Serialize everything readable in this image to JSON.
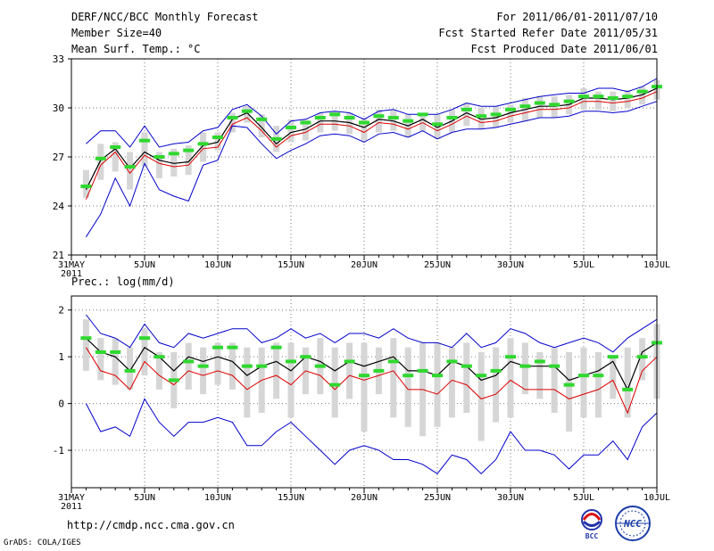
{
  "header": {
    "title": "DERF/NCC/BCC Monthly Forecast",
    "member_size": "Member Size=40",
    "variable": "Mean Surf. Temp.: °C",
    "for_range": "For 2011/06/01-2011/07/10",
    "refer_date": "Fcst Started Refer Date 2011/05/31",
    "produced_date": "Fcst Produced Date 2011/06/01"
  },
  "footer": {
    "url": "http://cmdp.ncc.cma.gov.cn",
    "grads": "GrADS: COLA/IGES",
    "logo_bcc": "BCC",
    "logo_ncc": "NCC"
  },
  "colors": {
    "spread": "#0000cc",
    "ensemble_mean": "#000000",
    "control": "#dd0000",
    "members": "#2fd82f",
    "range_bar": "#d6d6d6",
    "grid": "#777777"
  },
  "chart_data": [
    {
      "type": "line",
      "title": "Mean Surf. Temp.: °C",
      "xlabel": "",
      "ylabel": "°C",
      "x": [
        0,
        1,
        2,
        3,
        4,
        5,
        6,
        7,
        8,
        9,
        10,
        11,
        12,
        13,
        14,
        15,
        16,
        17,
        18,
        19,
        20,
        21,
        22,
        23,
        24,
        25,
        26,
        27,
        28,
        29,
        30,
        31,
        32,
        33,
        34,
        35,
        36,
        37,
        38,
        39,
        40
      ],
      "x_ticks": [
        0,
        5,
        10,
        15,
        20,
        25,
        30,
        35,
        40
      ],
      "x_tick_labels": [
        "31MAY",
        "5JUN",
        "10JUN",
        "15JUN",
        "20JUN",
        "25JUN",
        "30JUN",
        "5JUL",
        "10JUL"
      ],
      "x_year_label": "2011",
      "ylim": [
        21,
        33
      ],
      "y_ticks": [
        21,
        24,
        27,
        30,
        33
      ],
      "grid": true,
      "series": [
        {
          "name": "max",
          "values": [
            null,
            27.8,
            28.6,
            28.6,
            27.6,
            28.9,
            27.6,
            27.8,
            27.9,
            28.6,
            28.8,
            29.9,
            30.2,
            29.5,
            28.4,
            29.2,
            29.3,
            29.7,
            29.8,
            29.7,
            29.3,
            29.8,
            29.9,
            29.6,
            29.6,
            29.6,
            29.9,
            30.3,
            30.1,
            30.1,
            30.3,
            30.5,
            30.7,
            30.8,
            30.9,
            30.9,
            31.2,
            31.2,
            31.0,
            31.3,
            31.8
          ]
        },
        {
          "name": "ensemble_mean",
          "values": [
            null,
            25.0,
            26.8,
            27.5,
            26.3,
            27.3,
            26.8,
            26.6,
            26.7,
            27.7,
            27.9,
            29.3,
            29.7,
            28.8,
            27.8,
            28.5,
            28.7,
            29.2,
            29.2,
            29.1,
            28.8,
            29.3,
            29.2,
            28.9,
            29.3,
            28.8,
            29.2,
            29.7,
            29.3,
            29.4,
            29.7,
            29.9,
            30.1,
            30.1,
            30.2,
            30.6,
            30.6,
            30.5,
            30.6,
            30.8,
            31.2
          ]
        },
        {
          "name": "control",
          "values": [
            null,
            24.4,
            26.5,
            27.3,
            26.0,
            27.1,
            26.6,
            26.4,
            26.5,
            27.5,
            27.6,
            29.0,
            29.4,
            28.6,
            27.6,
            28.3,
            28.5,
            29.0,
            29.0,
            28.9,
            28.5,
            29.1,
            29.0,
            28.7,
            29.1,
            28.6,
            29.0,
            29.5,
            29.1,
            29.2,
            29.5,
            29.7,
            29.9,
            29.9,
            30.0,
            30.4,
            30.4,
            30.3,
            30.4,
            30.6,
            31.0
          ]
        },
        {
          "name": "min",
          "values": [
            null,
            22.1,
            23.5,
            25.7,
            24.0,
            26.6,
            25.0,
            24.6,
            24.3,
            26.5,
            26.8,
            28.9,
            28.8,
            27.8,
            26.9,
            27.4,
            27.8,
            28.3,
            28.4,
            28.3,
            27.9,
            28.4,
            28.5,
            28.2,
            28.6,
            28.1,
            28.5,
            28.7,
            28.7,
            28.8,
            29.0,
            29.2,
            29.4,
            29.4,
            29.5,
            29.8,
            29.8,
            29.7,
            29.8,
            30.1,
            30.4
          ]
        },
        {
          "name": "members",
          "values": [
            null,
            25.2,
            26.9,
            27.6,
            26.4,
            28.0,
            27.0,
            27.2,
            27.4,
            27.8,
            28.2,
            29.4,
            29.8,
            29.3,
            28.1,
            28.8,
            29.1,
            29.4,
            29.6,
            29.4,
            29.1,
            29.5,
            29.4,
            29.2,
            29.6,
            29.0,
            29.4,
            29.9,
            29.5,
            29.6,
            29.9,
            30.1,
            30.3,
            30.2,
            30.4,
            30.7,
            30.7,
            30.6,
            30.7,
            31.0,
            31.3
          ]
        },
        {
          "name": "range_low",
          "values": [
            null,
            24.5,
            25.6,
            26.1,
            25.0,
            26.4,
            25.7,
            25.8,
            25.9,
            26.7,
            27.4,
            28.5,
            29.1,
            28.2,
            27.3,
            27.9,
            28.0,
            28.5,
            28.6,
            28.4,
            28.0,
            28.5,
            28.6,
            28.2,
            28.6,
            28.1,
            28.5,
            28.9,
            28.7,
            28.8,
            29.1,
            29.2,
            29.4,
            29.4,
            29.6,
            29.9,
            29.9,
            29.8,
            30.0,
            30.2,
            30.5
          ]
        },
        {
          "name": "range_high",
          "values": [
            null,
            26.2,
            27.8,
            27.9,
            27.3,
            28.5,
            27.3,
            27.5,
            27.7,
            28.5,
            28.5,
            29.7,
            30.1,
            29.6,
            28.9,
            29.3,
            29.3,
            29.7,
            29.8,
            29.7,
            29.4,
            29.9,
            29.9,
            29.6,
            29.7,
            29.6,
            29.9,
            30.3,
            30.0,
            30.1,
            30.2,
            30.6,
            30.7,
            30.7,
            30.8,
            31.2,
            31.0,
            31.0,
            31.1,
            31.3,
            31.7
          ]
        }
      ]
    },
    {
      "type": "line",
      "title": "Prec.: log(mm/d)",
      "xlabel": "",
      "ylabel": "log(mm/d)",
      "x": [
        0,
        1,
        2,
        3,
        4,
        5,
        6,
        7,
        8,
        9,
        10,
        11,
        12,
        13,
        14,
        15,
        16,
        17,
        18,
        19,
        20,
        21,
        22,
        23,
        24,
        25,
        26,
        27,
        28,
        29,
        30,
        31,
        32,
        33,
        34,
        35,
        36,
        37,
        38,
        39,
        40
      ],
      "x_ticks": [
        0,
        5,
        10,
        15,
        20,
        25,
        30,
        35,
        40
      ],
      "x_tick_labels": [
        "31MAY",
        "5JUN",
        "10JUN",
        "15JUN",
        "20JUN",
        "25JUN",
        "30JUN",
        "5JUL",
        "10JUL"
      ],
      "x_year_label": "2011",
      "ylim": [
        -1.8,
        2.3
      ],
      "y_ticks": [
        -1,
        0,
        1,
        2
      ],
      "grid": true,
      "series": [
        {
          "name": "max",
          "values": [
            null,
            1.9,
            1.5,
            1.4,
            1.2,
            1.7,
            1.3,
            1.2,
            1.5,
            1.4,
            1.5,
            1.6,
            1.6,
            1.3,
            1.4,
            1.6,
            1.4,
            1.5,
            1.3,
            1.5,
            1.5,
            1.4,
            1.6,
            1.4,
            1.3,
            1.3,
            1.2,
            1.5,
            1.2,
            1.3,
            1.6,
            1.5,
            1.3,
            1.2,
            1.3,
            1.4,
            1.3,
            1.1,
            1.4,
            1.6,
            1.8
          ]
        },
        {
          "name": "ensemble_mean",
          "values": [
            null,
            1.4,
            1.1,
            1.0,
            0.7,
            1.2,
            1.0,
            0.7,
            1.0,
            0.9,
            1.0,
            0.9,
            0.6,
            0.8,
            0.9,
            0.7,
            1.0,
            0.9,
            0.7,
            0.9,
            0.8,
            0.9,
            1.0,
            0.7,
            0.7,
            0.6,
            0.9,
            0.8,
            0.5,
            0.6,
            0.9,
            0.8,
            0.8,
            0.8,
            0.5,
            0.6,
            0.7,
            0.9,
            0.3,
            1.1,
            1.3
          ]
        },
        {
          "name": "control",
          "values": [
            null,
            1.2,
            0.7,
            0.6,
            0.3,
            0.9,
            0.6,
            0.4,
            0.7,
            0.6,
            0.7,
            0.6,
            0.3,
            0.5,
            0.6,
            0.4,
            0.7,
            0.6,
            0.3,
            0.6,
            0.5,
            0.6,
            0.7,
            0.3,
            0.3,
            0.2,
            0.5,
            0.4,
            0.1,
            0.2,
            0.5,
            0.3,
            0.3,
            0.3,
            0.1,
            0.2,
            0.3,
            0.5,
            -0.2,
            0.7,
            1.0
          ]
        },
        {
          "name": "min",
          "values": [
            null,
            0.0,
            -0.6,
            -0.5,
            -0.7,
            0.1,
            -0.4,
            -0.7,
            -0.4,
            -0.4,
            -0.3,
            -0.4,
            -0.9,
            -0.9,
            -0.6,
            -0.4,
            -0.7,
            -1.0,
            -1.3,
            -1.0,
            -0.9,
            -1.0,
            -1.2,
            -1.2,
            -1.3,
            -1.5,
            -1.1,
            -1.2,
            -1.5,
            -1.2,
            -0.6,
            -1.0,
            -1.0,
            -1.1,
            -1.4,
            -1.1,
            -1.1,
            -0.8,
            -1.2,
            -0.5,
            -0.2
          ]
        },
        {
          "name": "members",
          "values": [
            null,
            1.4,
            1.1,
            1.1,
            0.7,
            1.4,
            1.0,
            0.5,
            0.9,
            0.8,
            1.2,
            1.2,
            0.8,
            0.8,
            1.2,
            0.9,
            1.0,
            0.8,
            0.4,
            0.9,
            0.6,
            0.7,
            0.9,
            0.6,
            0.7,
            0.6,
            0.9,
            0.8,
            0.6,
            0.7,
            1.0,
            0.8,
            0.9,
            0.8,
            0.4,
            0.6,
            0.6,
            1.0,
            0.3,
            1.0,
            1.3
          ]
        },
        {
          "name": "range_low",
          "values": [
            null,
            0.7,
            0.5,
            0.4,
            0.3,
            0.6,
            0.3,
            -0.1,
            0.3,
            0.2,
            0.4,
            0.3,
            -0.3,
            -0.2,
            0.1,
            -0.3,
            0.2,
            0.2,
            -0.3,
            0.1,
            -0.6,
            0.2,
            -0.3,
            -0.5,
            -0.7,
            -0.5,
            -0.3,
            -0.2,
            -0.8,
            -0.4,
            -0.3,
            0.2,
            0.1,
            -0.2,
            -0.6,
            -0.3,
            -0.3,
            0.1,
            -0.3,
            0.5,
            0.1
          ]
        },
        {
          "name": "range_high",
          "values": [
            null,
            1.8,
            1.4,
            1.4,
            1.2,
            1.6,
            1.1,
            1.1,
            1.3,
            1.2,
            1.3,
            1.3,
            1.2,
            1.2,
            1.3,
            1.3,
            1.2,
            1.4,
            1.2,
            1.3,
            1.3,
            1.2,
            1.4,
            1.2,
            1.3,
            1.3,
            1.2,
            1.3,
            1.1,
            1.2,
            1.4,
            1.3,
            1.1,
            1.2,
            1.1,
            1.2,
            1.1,
            1.0,
            1.2,
            1.4,
            1.7
          ]
        }
      ]
    }
  ]
}
